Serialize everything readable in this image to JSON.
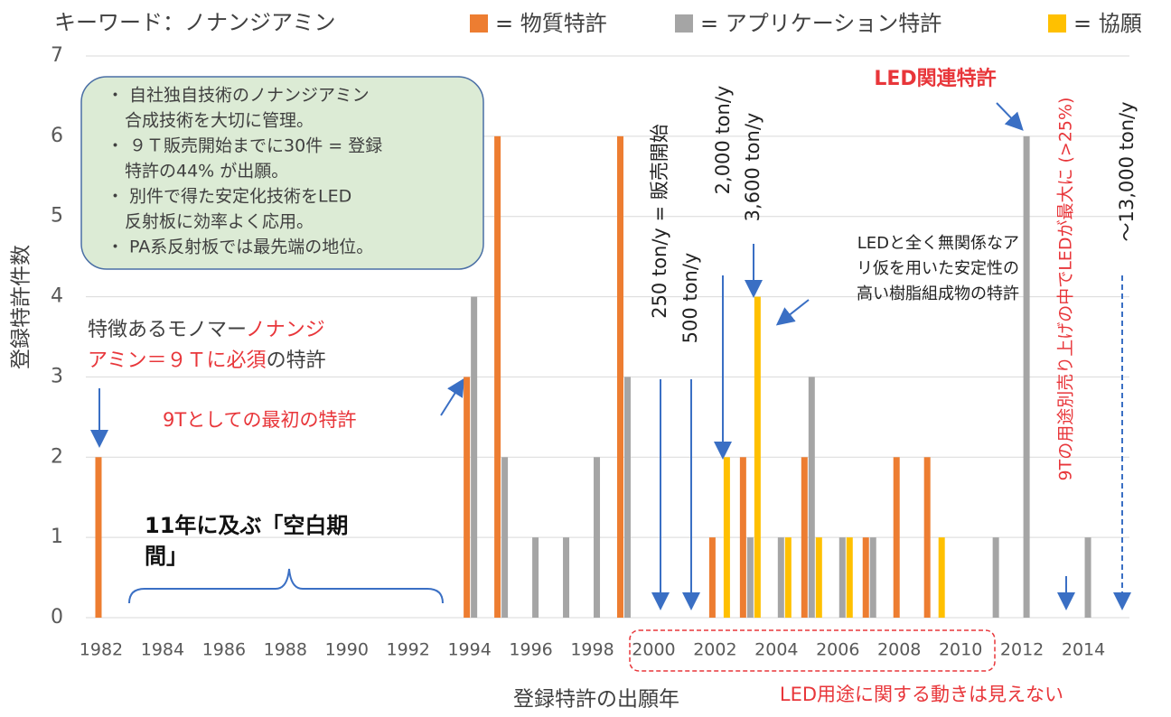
{
  "chart_data": {
    "type": "bar",
    "title": "キーワード：ノナンジアミン",
    "x_label": "登録特許の出願年",
    "y_label": "登録特許件数",
    "categories": [
      "1982",
      null,
      "1984",
      null,
      "1986",
      null,
      "1988",
      null,
      "1990",
      null,
      "1992",
      null,
      "1994",
      null,
      "1996",
      null,
      "1998",
      null,
      "2000",
      null,
      "2002",
      null,
      "2004",
      null,
      "2006",
      null,
      "2008",
      null,
      "2010",
      null,
      "2012",
      null,
      "2014",
      null
    ],
    "series": [
      {
        "name": "= 物質特許",
        "color": "#ed7d31",
        "values": [
          2,
          0,
          0,
          0,
          0,
          0,
          0,
          0,
          0,
          0,
          0,
          0,
          3,
          6,
          0,
          0,
          0,
          6,
          0,
          0,
          1,
          2,
          0,
          2,
          0,
          1,
          2,
          2,
          0,
          0,
          0,
          0,
          0,
          0
        ]
      },
      {
        "name": "= アプリケーション特許",
        "color": "#a5a5a5",
        "values": [
          0,
          0,
          0,
          0,
          0,
          0,
          0,
          0,
          0,
          0,
          0,
          0,
          4,
          2,
          1,
          1,
          2,
          3,
          0,
          0,
          0,
          1,
          1,
          3,
          1,
          1,
          0,
          0,
          0,
          1,
          6,
          0,
          1,
          0
        ]
      },
      {
        "name": "= 協願",
        "color": "#ffc000",
        "values": [
          0,
          0,
          0,
          0,
          0,
          0,
          0,
          0,
          0,
          0,
          0,
          0,
          0,
          0,
          0,
          0,
          0,
          0,
          0,
          0,
          2,
          4,
          1,
          1,
          1,
          0,
          0,
          1,
          0,
          0,
          0,
          0,
          0,
          0
        ]
      }
    ],
    "ylim": [
      0,
      7
    ],
    "yticks": [
      0,
      1,
      2,
      3,
      4,
      5,
      6,
      7
    ],
    "grid": true,
    "annotations": {
      "box": [
        "・ 自社独自技術のノナンジアミン",
        "合成技術を大切に管理。",
        "・ ９Ｔ販売開始までに30件 = 登録",
        "特許の44% が出願。",
        "・ 別件で得た安定化技術をLED",
        "反射板に効率よく応用。",
        "・ PA系反射板では最先端の地位。"
      ],
      "monomer": [
        "特徴あるモノマー",
        "ノナンジ",
        "アミン＝９Ｔに必須",
        "の特許"
      ],
      "first": "9Tとしての最初の特許",
      "blank": [
        "11年に及ぶ「空白期",
        "間」"
      ],
      "t250": "250 ton/y = 販売開始",
      "t500": "500 ton/y",
      "t2000": "2,000 ton/y",
      "t3600": "3,600 ton/y",
      "t13000": "〜13,000 ton/y",
      "led_max": "9Tの用途別売り上げの中でLEDが最大に (>25%)",
      "led": "LED関連特許",
      "unrelated": [
        "LEDと全く無関係なア",
        "リ仮を用いた安定性の",
        "高い樹脂組成物の特許"
      ],
      "no_move": "LED用途に関する動きは見えない"
    }
  }
}
